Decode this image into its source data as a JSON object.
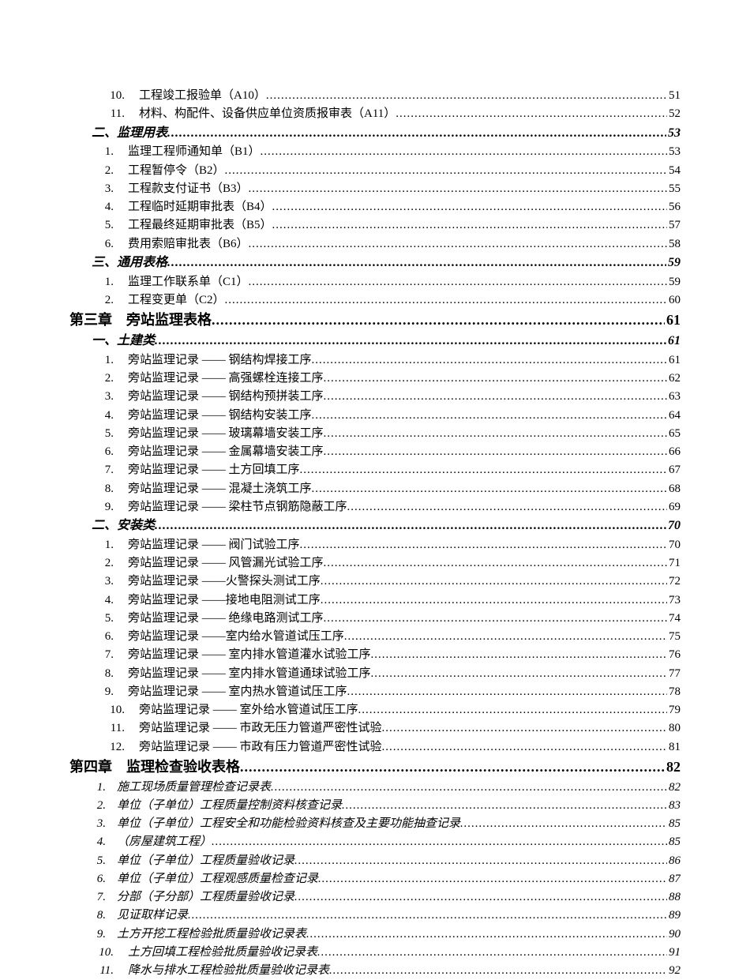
{
  "entries": [
    {
      "level": "item-wide",
      "num": "10.",
      "title": "工程竣工报验单（A10）",
      "page": "51"
    },
    {
      "level": "item-wide",
      "num": "11.",
      "title": "材料、构配件、设备供应单位资质报审表（A11）",
      "page": "52"
    },
    {
      "level": "section",
      "num": "",
      "title": "二、监理用表",
      "page": "53"
    },
    {
      "level": "item",
      "num": "1.",
      "title": "监理工程师通知单（B1）",
      "page": "53"
    },
    {
      "level": "item",
      "num": "2.",
      "title": "工程暂停令（B2）",
      "page": "54"
    },
    {
      "level": "item",
      "num": "3.",
      "title": "工程款支付证书（B3）",
      "page": "55"
    },
    {
      "level": "item",
      "num": "4.",
      "title": "工程临时延期审批表（B4）",
      "page": "56"
    },
    {
      "level": "item",
      "num": "5.",
      "title": "工程最终延期审批表（B5）",
      "page": "57"
    },
    {
      "level": "item",
      "num": "6.",
      "title": "费用索赔审批表（B6）",
      "page": "58"
    },
    {
      "level": "section",
      "num": "",
      "title": "三、通用表格",
      "page": "59"
    },
    {
      "level": "item",
      "num": "1.",
      "title": "监理工作联系单（C1）",
      "page": "59"
    },
    {
      "level": "item",
      "num": "2.",
      "title": "工程变更单（C2）",
      "page": "60"
    },
    {
      "level": "chapter",
      "num": "",
      "title": "第三章　旁站监理表格",
      "page": "61"
    },
    {
      "level": "section",
      "num": "",
      "title": "一、土建类",
      "page": "61"
    },
    {
      "level": "item",
      "num": "1.",
      "title": "旁站监理记录 —— 钢结构焊接工序",
      "page": "61"
    },
    {
      "level": "item",
      "num": "2.",
      "title": "旁站监理记录 —— 高强螺栓连接工序",
      "page": "62"
    },
    {
      "level": "item",
      "num": "3.",
      "title": "旁站监理记录 —— 钢结构预拼装工序",
      "page": "63"
    },
    {
      "level": "item",
      "num": "4.",
      "title": "旁站监理记录 —— 钢结构安装工序",
      "page": "64"
    },
    {
      "level": "item",
      "num": "5.",
      "title": "旁站监理记录 —— 玻璃幕墙安装工序",
      "page": "65"
    },
    {
      "level": "item",
      "num": "6.",
      "title": "旁站监理记录 —— 金属幕墙安装工序",
      "page": "66"
    },
    {
      "level": "item",
      "num": "7.",
      "title": "旁站监理记录 —— 土方回填工序",
      "page": "67"
    },
    {
      "level": "item",
      "num": "8.",
      "title": "旁站监理记录 —— 混凝土浇筑工序",
      "page": "68"
    },
    {
      "level": "item",
      "num": "9.",
      "title": "旁站监理记录 —— 梁柱节点钢筋隐蔽工序",
      "page": "69"
    },
    {
      "level": "section",
      "num": "",
      "title": "二、安装类",
      "page": "70"
    },
    {
      "level": "item",
      "num": "1.",
      "title": "旁站监理记录 —— 阀门试验工序",
      "page": "70"
    },
    {
      "level": "item",
      "num": "2.",
      "title": "旁站监理记录 —— 风管漏光试验工序",
      "page": "71"
    },
    {
      "level": "item",
      "num": "3.",
      "title": "旁站监理记录 ——火警探头测试工序",
      "page": "72"
    },
    {
      "level": "item",
      "num": "4.",
      "title": "旁站监理记录 ——接地电阻测试工序",
      "page": "73"
    },
    {
      "level": "item",
      "num": "5.",
      "title": "旁站监理记录 —— 绝缘电路测试工序",
      "page": "74"
    },
    {
      "level": "item",
      "num": "6.",
      "title": "旁站监理记录 ——室内给水管道试压工序",
      "page": "75"
    },
    {
      "level": "item",
      "num": "7.",
      "title": "旁站监理记录 —— 室内排水管道灌水试验工序",
      "page": "76"
    },
    {
      "level": "item",
      "num": "8.",
      "title": "旁站监理记录 —— 室内排水管道通球试验工序",
      "page": "77"
    },
    {
      "level": "item",
      "num": "9.",
      "title": "旁站监理记录 —— 室内热水管道试压工序",
      "page": "78"
    },
    {
      "level": "item-wide",
      "num": "10.",
      "title": "旁站监理记录 —— 室外给水管道试压工序",
      "page": "79"
    },
    {
      "level": "item-wide",
      "num": "11.",
      "title": "旁站监理记录 —— 市政无压力管道严密性试验",
      "page": "80"
    },
    {
      "level": "item-wide",
      "num": "12.",
      "title": "旁站监理记录 —— 市政有压力管道严密性试验",
      "page": "81"
    },
    {
      "level": "chapter",
      "num": "",
      "title": "第四章　监理检查验收表格",
      "page": "82"
    },
    {
      "level": "item-italic",
      "num": "1.",
      "title": "施工现场质量管理检查记录表",
      "page": "82"
    },
    {
      "level": "item-italic",
      "num": "2.",
      "title": "单位（子单位）工程质量控制资料核查记录",
      "page": "83"
    },
    {
      "level": "item-italic",
      "num": "3.",
      "title": "单位（子单位）工程安全和功能检验资料核查及主要功能抽查记录",
      "page": "85"
    },
    {
      "level": "item-italic",
      "num": "4.",
      "title": "（房屋建筑工程）",
      "page": "85"
    },
    {
      "level": "item-italic",
      "num": "5.",
      "title": "单位（子单位）工程质量验收记录",
      "page": "86"
    },
    {
      "level": "item-italic",
      "num": "6.",
      "title": "单位（子单位）工程观感质量检查记录",
      "page": "87"
    },
    {
      "level": "item-italic",
      "num": "7.",
      "title": "分部（子分部）工程质量验收记录",
      "page": "88"
    },
    {
      "level": "item-italic",
      "num": "8.",
      "title": "见证取样记录",
      "page": "89"
    },
    {
      "level": "item-italic",
      "num": "9.",
      "title": "土方开挖工程检验批质量验收记录表",
      "page": "90"
    },
    {
      "level": "item-italic-wide",
      "num": "10.",
      "title": "土方回填工程检验批质量验收记录表",
      "page": "91"
    },
    {
      "level": "item-italic-wide",
      "num": "11.",
      "title": "降水与排水工程检验批质量验收记录表",
      "page": "92"
    }
  ]
}
